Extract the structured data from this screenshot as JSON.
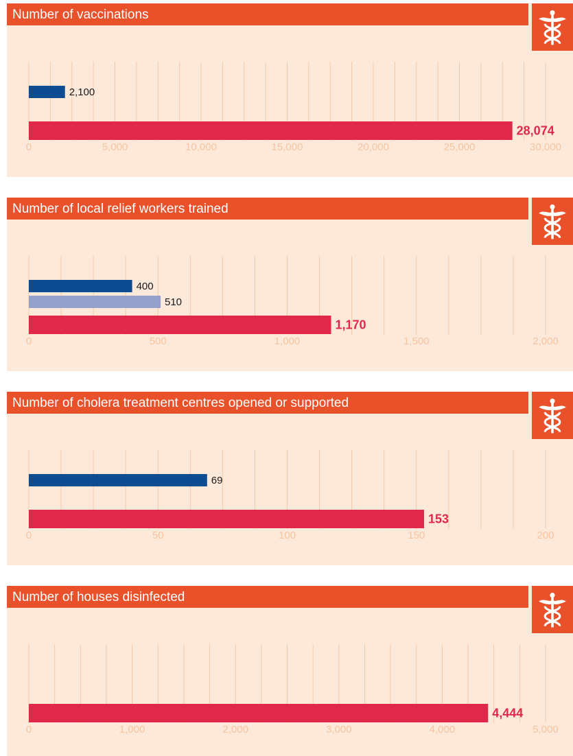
{
  "chart_data": [
    {
      "type": "bar",
      "title": "Number of vaccinations",
      "values": [
        2100,
        null,
        28074
      ],
      "value_labels": [
        "2,100",
        null,
        "28,074"
      ],
      "colors": [
        "#0e4c92",
        "#949fcc",
        "#e0284a"
      ],
      "xlim": [
        0,
        30000
      ],
      "xticks": [
        0,
        {
          "value": 5000,
          "label": "5,000"
        },
        {
          "value": 10000,
          "label": "10,000"
        },
        {
          "value": 15000,
          "label": "15,000"
        },
        {
          "value": 20000,
          "label": "20,000"
        },
        {
          "value": 25000,
          "label": "25,000"
        },
        {
          "value": 30000,
          "label": "30,000"
        }
      ],
      "grid": true
    },
    {
      "type": "bar",
      "title": "Number of local relief workers trained",
      "values": [
        400,
        510,
        1170
      ],
      "value_labels": [
        null,
        null,
        "1,170"
      ],
      "colors": [
        "#0e4c92",
        "#949fcc",
        "#e0284a"
      ],
      "xlim": [
        0,
        2000
      ],
      "xticks": [
        0,
        500,
        {
          "value": 1000,
          "label": "1,000"
        },
        {
          "value": 1500,
          "label": "1,500"
        },
        {
          "value": 2000,
          "label": "2,000"
        }
      ],
      "grid": true
    },
    {
      "type": "bar",
      "title": "Number of cholera treatment centres opened or supported",
      "values": [
        69,
        null,
        153
      ],
      "colors": [
        "#0e4c92",
        "#949fcc",
        "#e0284a"
      ],
      "xlim": [
        0,
        200
      ],
      "xticks": [
        0,
        50,
        100,
        150,
        200
      ],
      "grid": true
    },
    {
      "type": "bar",
      "title": "Number of houses disinfected",
      "values": [
        null,
        null,
        4444
      ],
      "value_labels": [
        null,
        null,
        "4,444"
      ],
      "colors": [
        "#0e4c92",
        "#949fcc",
        "#e0284a"
      ],
      "xlim": [
        0,
        5000
      ],
      "xticks": [
        0,
        {
          "value": 1000,
          "label": "1,000"
        },
        {
          "value": 2000,
          "label": "2,000"
        },
        {
          "value": 3000,
          "label": "3,000"
        },
        {
          "value": 4000,
          "label": "4,000"
        },
        {
          "value": 5000,
          "label": "5,000"
        }
      ],
      "grid": true
    }
  ]
}
